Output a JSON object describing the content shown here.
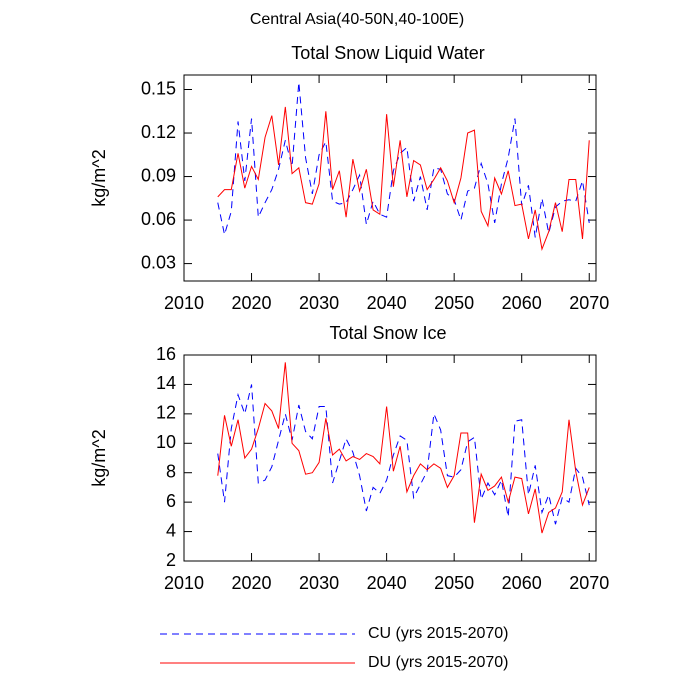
{
  "title": "Central Asia(40-50N,40-100E)",
  "chart_data": [
    {
      "type": "line",
      "title": "Total Snow Liquid Water",
      "y_label": "kg/m^2",
      "x": [
        2015,
        2016,
        2017,
        2018,
        2019,
        2020,
        2021,
        2022,
        2023,
        2024,
        2025,
        2026,
        2027,
        2028,
        2029,
        2030,
        2031,
        2032,
        2033,
        2034,
        2035,
        2036,
        2037,
        2038,
        2039,
        2040,
        2041,
        2042,
        2043,
        2044,
        2045,
        2046,
        2047,
        2048,
        2049,
        2050,
        2051,
        2052,
        2053,
        2054,
        2055,
        2056,
        2057,
        2058,
        2059,
        2060,
        2061,
        2062,
        2063,
        2064,
        2065,
        2066,
        2067,
        2068,
        2069,
        2070
      ],
      "xlim": [
        2010,
        2071
      ],
      "xticks": [
        2010,
        2020,
        2030,
        2040,
        2050,
        2060,
        2070
      ],
      "ylim": [
        0.018,
        0.16
      ],
      "yticks": [
        0.03,
        0.06,
        0.09,
        0.12,
        0.15
      ],
      "series": [
        {
          "color": "#0000ff",
          "dash": true,
          "values": [
            0.072,
            0.05,
            0.066,
            0.128,
            0.087,
            0.13,
            0.062,
            0.072,
            0.081,
            0.095,
            0.115,
            0.097,
            0.155,
            0.103,
            0.078,
            0.105,
            0.114,
            0.073,
            0.071,
            0.072,
            0.081,
            0.091,
            0.057,
            0.073,
            0.064,
            0.062,
            0.094,
            0.106,
            0.11,
            0.073,
            0.09,
            0.067,
            0.096,
            0.095,
            0.078,
            0.074,
            0.06,
            0.08,
            0.082,
            0.099,
            0.085,
            0.058,
            0.085,
            0.103,
            0.13,
            0.07,
            0.084,
            0.048,
            0.075,
            0.051,
            0.069,
            0.073,
            0.074,
            0.073,
            0.087,
            0.058
          ]
        },
        {
          "color": "#ff0000",
          "dash": false,
          "values": [
            0.076,
            0.081,
            0.081,
            0.106,
            0.082,
            0.097,
            0.088,
            0.117,
            0.132,
            0.098,
            0.138,
            0.092,
            0.096,
            0.072,
            0.071,
            0.085,
            0.135,
            0.081,
            0.094,
            0.062,
            0.102,
            0.08,
            0.095,
            0.067,
            0.064,
            0.133,
            0.083,
            0.115,
            0.076,
            0.101,
            0.098,
            0.081,
            0.088,
            0.096,
            0.087,
            0.072,
            0.089,
            0.12,
            0.122,
            0.066,
            0.056,
            0.089,
            0.078,
            0.094,
            0.07,
            0.071,
            0.047,
            0.067,
            0.04,
            0.052,
            0.072,
            0.052,
            0.088,
            0.088,
            0.047,
            0.115
          ]
        }
      ]
    },
    {
      "type": "line",
      "title": "Total Snow Ice",
      "y_label": "kg/m^2",
      "x": [
        2015,
        2016,
        2017,
        2018,
        2019,
        2020,
        2021,
        2022,
        2023,
        2024,
        2025,
        2026,
        2027,
        2028,
        2029,
        2030,
        2031,
        2032,
        2033,
        2034,
        2035,
        2036,
        2037,
        2038,
        2039,
        2040,
        2041,
        2042,
        2043,
        2044,
        2045,
        2046,
        2047,
        2048,
        2049,
        2050,
        2051,
        2052,
        2053,
        2054,
        2055,
        2056,
        2057,
        2058,
        2059,
        2060,
        2061,
        2062,
        2063,
        2064,
        2065,
        2066,
        2067,
        2068,
        2069,
        2070
      ],
      "xlim": [
        2010,
        2071
      ],
      "xticks": [
        2010,
        2020,
        2030,
        2040,
        2050,
        2060,
        2070
      ],
      "ylim": [
        2,
        16
      ],
      "yticks": [
        2,
        4,
        6,
        8,
        10,
        12,
        14,
        16
      ],
      "series": [
        {
          "name": "CU (yrs 2015-2070)",
          "color": "#0000ff",
          "dash": true,
          "values": [
            9.3,
            6.0,
            11.0,
            13.3,
            12.0,
            14.0,
            7.3,
            7.5,
            8.4,
            10.2,
            12.0,
            10.2,
            12.6,
            10.8,
            10.3,
            12.5,
            12.5,
            7.3,
            8.8,
            10.3,
            9.4,
            7.8,
            5.4,
            7.0,
            6.6,
            7.5,
            9.2,
            10.5,
            10.2,
            6.3,
            7.2,
            8.1,
            12.0,
            10.9,
            7.8,
            7.7,
            8.2,
            10.1,
            10.4,
            6.2,
            7.3,
            6.5,
            7.5,
            5.0,
            11.5,
            11.6,
            6.5,
            8.5,
            5.3,
            6.5,
            4.5,
            6.3,
            6.0,
            8.3,
            7.7,
            5.8
          ]
        },
        {
          "name": "DU (yrs 2015-2070)",
          "color": "#ff0000",
          "dash": false,
          "values": [
            7.8,
            11.9,
            9.8,
            11.6,
            9.0,
            9.6,
            11.0,
            12.7,
            12.2,
            11.0,
            15.5,
            10.0,
            9.5,
            7.9,
            8.0,
            8.7,
            11.7,
            9.2,
            9.6,
            8.8,
            9.1,
            8.9,
            9.3,
            9.1,
            8.6,
            12.5,
            8.1,
            9.8,
            6.7,
            7.8,
            8.6,
            8.2,
            8.6,
            8.3,
            7.0,
            7.8,
            10.7,
            10.7,
            4.6,
            7.9,
            6.8,
            7.1,
            7.7,
            6.0,
            7.7,
            7.6,
            5.2,
            6.9,
            3.9,
            5.3,
            5.6,
            6.7,
            11.6,
            8.1,
            5.8,
            7.0
          ]
        }
      ]
    }
  ]
}
